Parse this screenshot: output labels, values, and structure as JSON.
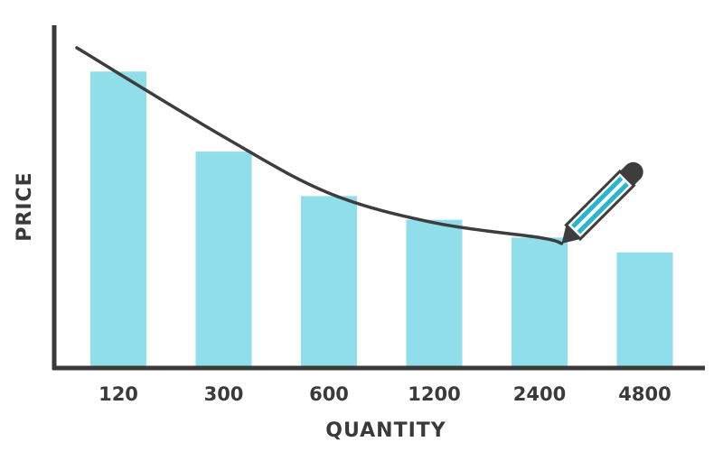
{
  "chart_data": {
    "type": "bar",
    "categories": [
      "120",
      "300",
      "600",
      "1200",
      "2400",
      "4800"
    ],
    "values": [
      100,
      73,
      58,
      50,
      44,
      39
    ],
    "trend_line": [
      108,
      78,
      59,
      49,
      44,
      42
    ],
    "xlabel": "QUANTITY",
    "ylabel": "PRICE",
    "ylim": [
      0,
      115
    ],
    "grid": false,
    "annotation_icon": "pencil-icon"
  },
  "colors": {
    "bar": "#8fdee9",
    "axis": "#3a3a3a",
    "curve": "#3d3d3d",
    "pencil": "#27b6cf",
    "label": "#3a3a3a"
  }
}
